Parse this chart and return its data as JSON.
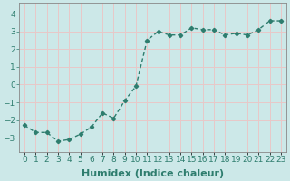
{
  "x": [
    0,
    1,
    2,
    3,
    4,
    5,
    6,
    7,
    8,
    9,
    10,
    11,
    12,
    13,
    14,
    15,
    16,
    17,
    18,
    19,
    20,
    21,
    22,
    23
  ],
  "y": [
    -2.3,
    -2.7,
    -2.7,
    -3.2,
    -3.1,
    -2.8,
    -2.4,
    -1.6,
    -1.9,
    -0.9,
    -0.1,
    2.5,
    3.0,
    2.8,
    2.8,
    3.2,
    3.1,
    3.1,
    2.8,
    2.9,
    2.8,
    3.1,
    3.6,
    3.6
  ],
  "line_color": "#2e7d6e",
  "marker": "D",
  "marker_size": 2.2,
  "line_width": 1.0,
  "bg_color": "#cce8e8",
  "grid_color": "#e8c8c8",
  "xlabel": "Humidex (Indice chaleur)",
  "xlabel_fontsize": 8,
  "ylim": [
    -3.8,
    4.6
  ],
  "yticks": [
    -3,
    -2,
    -1,
    0,
    1,
    2,
    3,
    4
  ],
  "xlim": [
    -0.5,
    23.5
  ],
  "xtick_labels": [
    "0",
    "1",
    "2",
    "3",
    "4",
    "5",
    "6",
    "7",
    "8",
    "9",
    "10",
    "11",
    "12",
    "13",
    "14",
    "15",
    "16",
    "17",
    "18",
    "19",
    "20",
    "21",
    "22",
    "23"
  ],
  "tick_fontsize": 6.5,
  "spine_color": "#888888"
}
